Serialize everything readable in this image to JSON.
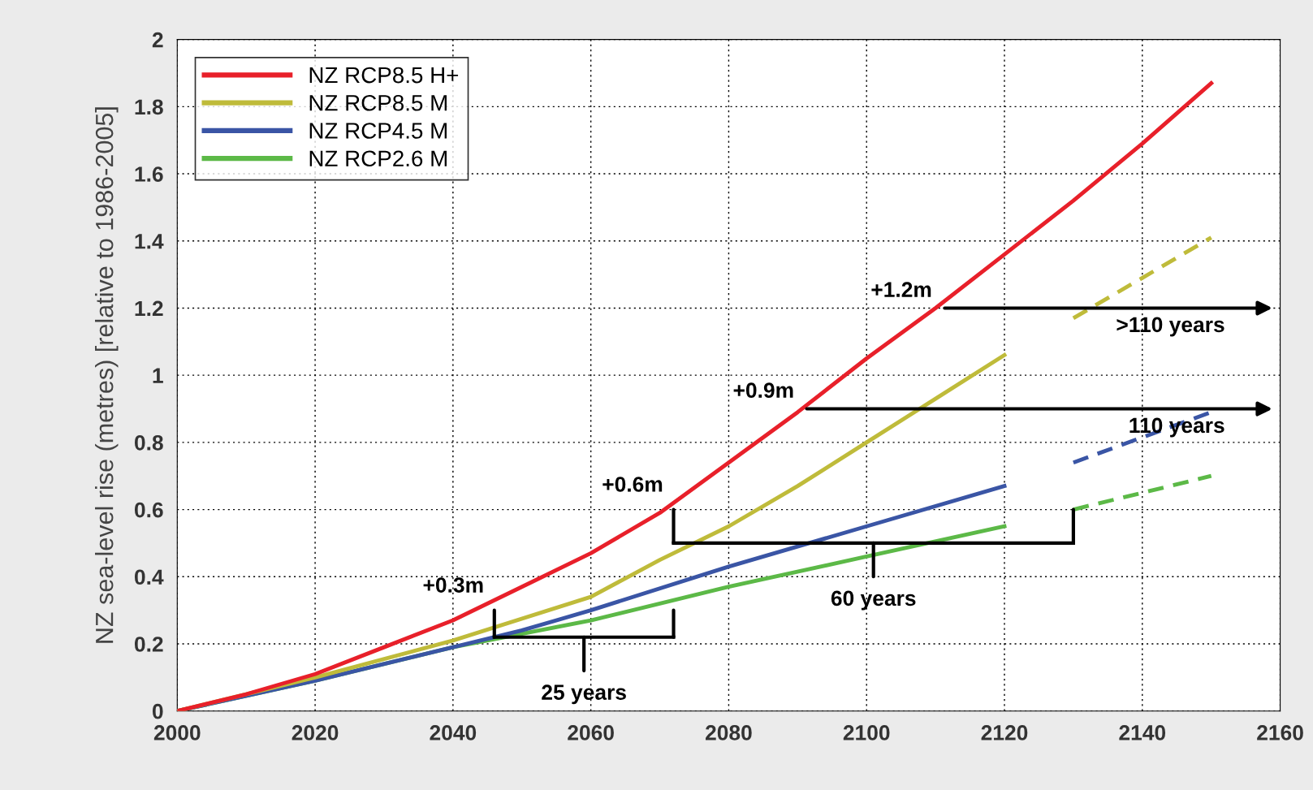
{
  "chart_data": {
    "type": "line",
    "ylabel": "NZ sea-level rise (metres) [relative to 1986-2005]",
    "xlim": [
      2000,
      2160
    ],
    "xticks": [
      2000,
      2020,
      2040,
      2060,
      2080,
      2100,
      2120,
      2140,
      2160
    ],
    "ylim": [
      0,
      2
    ],
    "yticks": [
      0,
      0.2,
      0.4,
      0.6,
      0.8,
      1,
      1.2,
      1.4,
      1.6,
      1.8,
      2
    ],
    "grid": true,
    "legend": "top left",
    "line_style": "solid",
    "marker": "none",
    "series": [
      {
        "name": "NZ RCP8.5 H+",
        "color": "#e8202a",
        "x": [
          2000,
          2010,
          2020,
          2030,
          2040,
          2050,
          2060,
          2070,
          2080,
          2090,
          2100,
          2110,
          2120,
          2130,
          2140,
          2150
        ],
        "values": [
          0,
          0.05,
          0.11,
          0.19,
          0.27,
          0.37,
          0.47,
          0.59,
          0.74,
          0.89,
          1.05,
          1.2,
          1.36,
          1.52,
          1.69,
          1.87
        ]
      },
      {
        "name": "NZ RCP8.5 M",
        "color": "#bfbb3a",
        "x": [
          2000,
          2020,
          2040,
          2060,
          2070,
          2080,
          2090,
          2100,
          2110,
          2120
        ],
        "values": [
          0,
          0.1,
          0.21,
          0.34,
          0.45,
          0.55,
          0.67,
          0.8,
          0.93,
          1.06
        ]
      },
      {
        "name": "NZ RCP4.5 M",
        "color": "#3a55a5",
        "x": [
          2000,
          2020,
          2040,
          2050,
          2060,
          2080,
          2100,
          2120
        ],
        "values": [
          0,
          0.09,
          0.19,
          0.24,
          0.3,
          0.43,
          0.55,
          0.67
        ]
      },
      {
        "name": "NZ RCP2.6 M",
        "color": "#5cb947",
        "x": [
          2000,
          2020,
          2040,
          2060,
          2080,
          2100,
          2120
        ],
        "values": [
          0,
          0.09,
          0.19,
          0.27,
          0.37,
          0.46,
          0.55
        ]
      },
      {
        "color": "#bfbb3a",
        "line_style": "dashed",
        "x": [
          2130,
          2150
        ],
        "values": [
          1.17,
          1.41
        ]
      },
      {
        "color": "#3a55a5",
        "line_style": "dashed",
        "x": [
          2130,
          2150
        ],
        "values": [
          0.74,
          0.89
        ]
      },
      {
        "color": "#5cb947",
        "line_style": "dashed",
        "x": [
          2130,
          2150
        ],
        "values": [
          0.6,
          0.7
        ]
      }
    ],
    "annotations": [
      {
        "text": "+0.3m",
        "x": 2046,
        "y": 0.32
      },
      {
        "text": "+0.6m",
        "x": 2072,
        "y": 0.62
      },
      {
        "text": "+0.9m",
        "x": 2091,
        "y": 0.9
      },
      {
        "text": "+1.2m",
        "x": 2111,
        "y": 1.2
      },
      "25 years",
      "60 years",
      "110 years",
      ">110 years"
    ]
  }
}
